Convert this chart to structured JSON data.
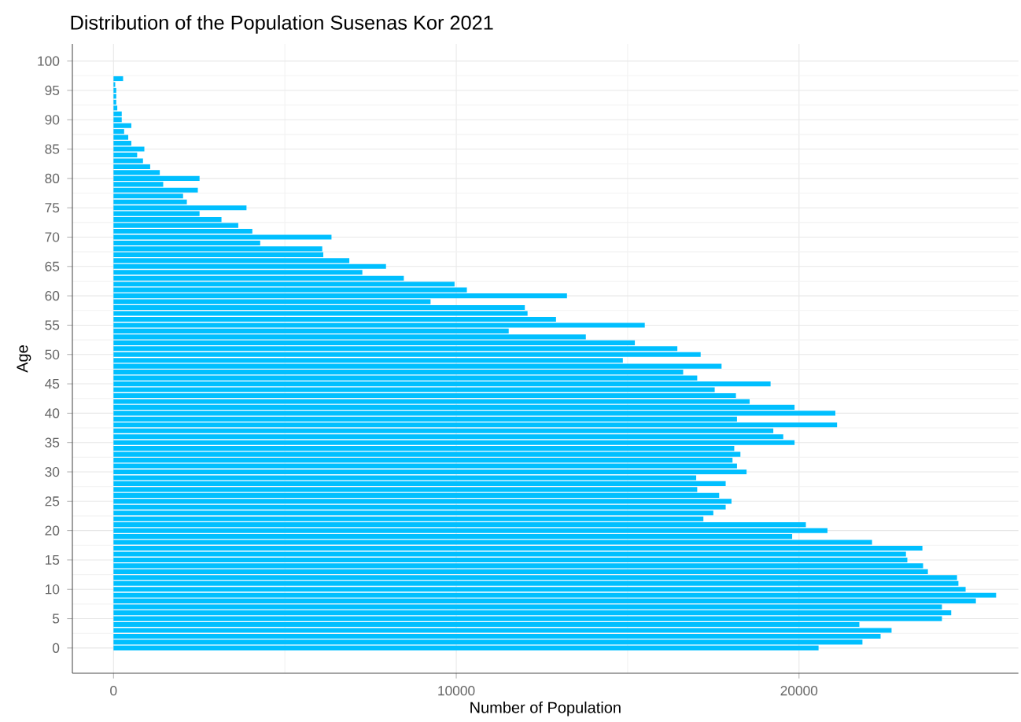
{
  "chart_data": {
    "type": "bar",
    "orientation": "horizontal",
    "title": "Distribution of the Population Susenas Kor 2021",
    "xlabel": "Number of Population",
    "ylabel": "Age",
    "color": "#00bfff",
    "grid": true,
    "xlim": [
      -1200,
      26400
    ],
    "xticks": [
      0,
      10000,
      20000
    ],
    "categories": [
      "100",
      null,
      null,
      null,
      null,
      "95",
      null,
      null,
      null,
      null,
      "90",
      null,
      null,
      null,
      null,
      "85",
      null,
      null,
      null,
      null,
      "80",
      null,
      null,
      null,
      null,
      "75",
      null,
      null,
      null,
      null,
      "70",
      null,
      null,
      null,
      null,
      "65",
      null,
      null,
      null,
      null,
      "60",
      null,
      null,
      null,
      null,
      "55",
      null,
      null,
      null,
      null,
      "50",
      null,
      null,
      null,
      null,
      "45",
      null,
      null,
      null,
      null,
      "40",
      null,
      null,
      null,
      null,
      "35",
      null,
      null,
      null,
      null,
      "30",
      null,
      null,
      null,
      null,
      "25",
      null,
      null,
      null,
      null,
      "20",
      null,
      null,
      null,
      null,
      "15",
      null,
      null,
      null,
      null,
      "10",
      null,
      null,
      null,
      null,
      "5",
      null,
      null,
      null,
      null,
      "0"
    ],
    "values": [
      null,
      null,
      null,
      280,
      50,
      80,
      80,
      80,
      110,
      240,
      240,
      520,
      310,
      430,
      520,
      900,
      690,
      860,
      1070,
      1350,
      2510,
      1450,
      2460,
      2030,
      2140,
      3880,
      2510,
      3150,
      3640,
      4050,
      6360,
      4280,
      6090,
      6120,
      6880,
      7950,
      7260,
      8470,
      9950,
      10310,
      13230,
      9250,
      12000,
      12080,
      12910,
      15500,
      11530,
      13780,
      15210,
      16450,
      17130,
      14860,
      17740,
      16620,
      17030,
      19170,
      17540,
      18160,
      18560,
      19870,
      21060,
      18190,
      21110,
      19250,
      19540,
      19870,
      18110,
      18290,
      18060,
      18190,
      18470,
      17000,
      17860,
      17030,
      17670,
      18030,
      17860,
      17500,
      17210,
      20200,
      20830,
      19800,
      22130,
      23600,
      23120,
      23160,
      23620,
      23760,
      24610,
      24650,
      24860,
      25750,
      25160,
      24170,
      24440,
      24170,
      21760,
      22700,
      22380,
      21850,
      20570
    ]
  }
}
